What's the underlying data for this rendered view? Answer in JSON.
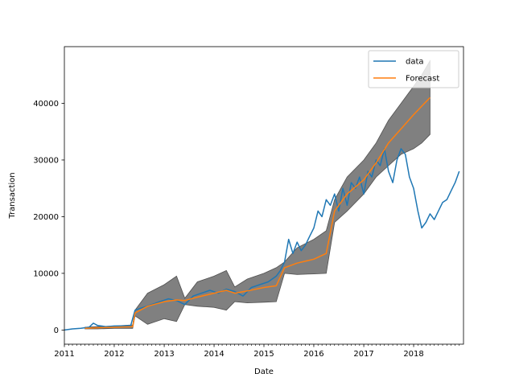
{
  "chart_data": {
    "type": "line",
    "title": "",
    "xlabel": "Date",
    "ylabel": "Transaction",
    "xlim": [
      "2011-01-01",
      "2019-01-01"
    ],
    "ylim": [
      -2500,
      50000
    ],
    "x_ticks": [
      {
        "date": "2011-01-01",
        "label": "2011"
      },
      {
        "date": "2012-01-01",
        "label": "2012"
      },
      {
        "date": "2013-01-01",
        "label": "2013"
      },
      {
        "date": "2014-01-01",
        "label": "2014"
      },
      {
        "date": "2015-01-01",
        "label": "2015"
      },
      {
        "date": "2016-01-01",
        "label": "2016"
      },
      {
        "date": "2017-01-01",
        "label": "2017"
      },
      {
        "date": "2018-01-01",
        "label": "2018"
      }
    ],
    "y_ticks": [
      {
        "value": 0,
        "label": "0"
      },
      {
        "value": 10000,
        "label": "10000"
      },
      {
        "value": 20000,
        "label": "20000"
      },
      {
        "value": 30000,
        "label": "30000"
      },
      {
        "value": 40000,
        "label": "40000"
      }
    ],
    "grid": false,
    "legend_position": "top-right",
    "colors": {
      "data": "#1f77b4",
      "forecast": "#ff7f0e",
      "band": "#808080",
      "band_edge": "#505050"
    },
    "series": [
      {
        "name": "data",
        "x": [
          "2011-01-01",
          "2011-03-01",
          "2011-05-01",
          "2011-07-01",
          "2011-08-01",
          "2011-09-01",
          "2011-11-01",
          "2012-01-01",
          "2012-03-01",
          "2012-05-01",
          "2012-06-01",
          "2012-08-01",
          "2012-10-01",
          "2012-12-01",
          "2013-02-01",
          "2013-04-01",
          "2013-06-01",
          "2013-08-01",
          "2013-10-01",
          "2013-12-01",
          "2014-02-01",
          "2014-04-01",
          "2014-06-01",
          "2014-08-01",
          "2014-10-01",
          "2014-12-01",
          "2015-02-01",
          "2015-04-01",
          "2015-05-01",
          "2015-06-01",
          "2015-07-01",
          "2015-08-01",
          "2015-09-01",
          "2015-10-01",
          "2015-11-01",
          "2015-12-01",
          "2016-01-01",
          "2016-02-01",
          "2016-03-01",
          "2016-04-01",
          "2016-05-01",
          "2016-06-01",
          "2016-07-01",
          "2016-08-01",
          "2016-09-01",
          "2016-10-01",
          "2016-11-01",
          "2016-12-01",
          "2017-01-01",
          "2017-02-01",
          "2017-03-01",
          "2017-04-01",
          "2017-05-01",
          "2017-06-01",
          "2017-07-01",
          "2017-08-01",
          "2017-09-01",
          "2017-10-01",
          "2017-11-01",
          "2017-12-01",
          "2018-01-01",
          "2018-02-01",
          "2018-03-01",
          "2018-04-01",
          "2018-05-01",
          "2018-06-01",
          "2018-07-01",
          "2018-08-01",
          "2018-09-01",
          "2018-10-01",
          "2018-11-01",
          "2018-12-01"
        ],
        "values": [
          0,
          200,
          300,
          500,
          1200,
          800,
          600,
          700,
          700,
          800,
          3500,
          4000,
          4500,
          5000,
          5500,
          5200,
          4500,
          6000,
          6500,
          7000,
          6500,
          7200,
          6800,
          6000,
          7500,
          8000,
          8500,
          9500,
          10500,
          12000,
          16000,
          13500,
          15500,
          14000,
          15000,
          16500,
          18000,
          21000,
          20000,
          23000,
          22000,
          24000,
          21000,
          25000,
          22000,
          26000,
          25000,
          27000,
          24000,
          28000,
          27000,
          30000,
          29000,
          32000,
          28000,
          26000,
          30000,
          32000,
          31000,
          27000,
          25000,
          21000,
          18000,
          19000,
          20500,
          19500,
          21000,
          22500,
          23000,
          24500,
          26000,
          28000
        ]
      },
      {
        "name": "Forecast",
        "x": [
          "2011-06-01",
          "2011-09-01",
          "2012-01-01",
          "2012-05-15",
          "2012-06-01",
          "2012-09-01",
          "2013-01-01",
          "2013-04-01",
          "2013-06-01",
          "2013-09-01",
          "2014-01-01",
          "2014-04-01",
          "2014-06-01",
          "2014-09-01",
          "2015-01-01",
          "2015-04-01",
          "2015-06-01",
          "2015-09-01",
          "2016-01-01",
          "2016-04-01",
          "2016-06-01",
          "2016-09-01",
          "2017-01-01",
          "2017-04-01",
          "2017-07-01",
          "2017-10-01",
          "2018-01-01",
          "2018-03-01",
          "2018-05-01"
        ],
        "values": [
          300,
          400,
          500,
          600,
          3000,
          4200,
          5000,
          5300,
          5200,
          5800,
          6500,
          7000,
          6500,
          6900,
          7500,
          7800,
          11000,
          11800,
          12500,
          13500,
          21000,
          24000,
          26500,
          29500,
          33000,
          35500,
          38000,
          39500,
          41000
        ],
        "lower": [
          200,
          200,
          300,
          300,
          2500,
          1000,
          2000,
          1500,
          4500,
          4200,
          4000,
          3500,
          5000,
          4800,
          4900,
          5000,
          10000,
          9800,
          9900,
          10000,
          19000,
          21000,
          24000,
          27000,
          29000,
          31000,
          32000,
          33000,
          34500
        ],
        "upper": [
          500,
          600,
          700,
          900,
          3500,
          6500,
          8000,
          9500,
          5600,
          8500,
          9500,
          10500,
          7600,
          9000,
          10000,
          11000,
          12000,
          14500,
          16000,
          17500,
          23000,
          27000,
          30000,
          33000,
          37000,
          40000,
          43000,
          45000,
          47500
        ]
      }
    ]
  }
}
